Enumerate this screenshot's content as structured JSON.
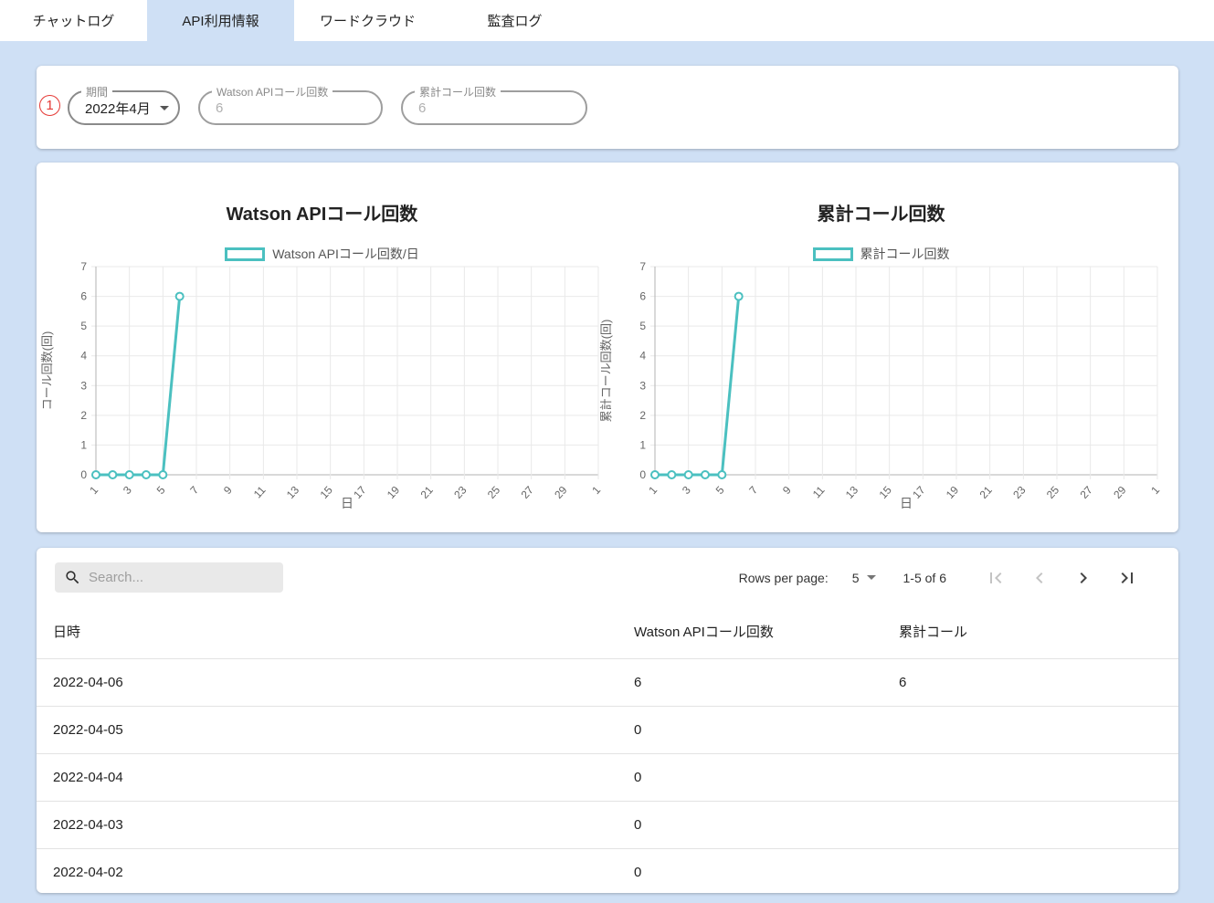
{
  "colors": {
    "accent_teal": "#4BC0C0",
    "page_bg": "#cfe0f5",
    "annotation_red": "#e53935"
  },
  "tabs": [
    {
      "label": "チャットログ",
      "active": false
    },
    {
      "label": "API利用情報",
      "active": true
    },
    {
      "label": "ワードクラウド",
      "active": false
    },
    {
      "label": "監査ログ",
      "active": false
    }
  ],
  "annotation": {
    "label": "1"
  },
  "filters": {
    "period": {
      "label": "期間",
      "value": "2022年4月"
    },
    "watson_calls": {
      "label": "Watson APIコール回数",
      "value": "6"
    },
    "total_calls": {
      "label": "累計コール回数",
      "value": "6"
    }
  },
  "chart_data": [
    {
      "type": "line",
      "title": "Watson APIコール回数",
      "legend": "Watson APIコール回数/日",
      "ylabel": "コール回数(回)",
      "xlabel": "日",
      "color": "#4BC0C0",
      "ylim": [
        0,
        7
      ],
      "yticks": [
        0,
        1,
        2,
        3,
        4,
        5,
        6,
        7
      ],
      "xlim": [
        1,
        31
      ],
      "xtick_days": [
        1,
        3,
        5,
        7,
        9,
        11,
        13,
        15,
        17,
        19,
        21,
        23,
        25,
        27,
        29,
        31
      ],
      "xtick_labels": [
        "1",
        "3",
        "5",
        "7",
        "9",
        "11",
        "13",
        "15",
        "17",
        "19",
        "21",
        "23",
        "25",
        "27",
        "29",
        "1"
      ],
      "x": [
        1,
        2,
        3,
        4,
        5,
        6
      ],
      "y": [
        0,
        0,
        0,
        0,
        0,
        6
      ],
      "grid": true,
      "legend_position": "top"
    },
    {
      "type": "line",
      "title": "累計コール回数",
      "legend": "累計コール回数",
      "ylabel": "累計コール回数(回)",
      "xlabel": "日",
      "color": "#4BC0C0",
      "ylim": [
        0,
        7
      ],
      "yticks": [
        0,
        1,
        2,
        3,
        4,
        5,
        6,
        7
      ],
      "xlim": [
        1,
        31
      ],
      "xtick_days": [
        1,
        3,
        5,
        7,
        9,
        11,
        13,
        15,
        17,
        19,
        21,
        23,
        25,
        27,
        29,
        31
      ],
      "xtick_labels": [
        "1",
        "3",
        "5",
        "7",
        "9",
        "11",
        "13",
        "15",
        "17",
        "19",
        "21",
        "23",
        "25",
        "27",
        "29",
        "1"
      ],
      "x": [
        1,
        2,
        3,
        4,
        5,
        6
      ],
      "y": [
        0,
        0,
        0,
        0,
        0,
        6
      ],
      "grid": true,
      "legend_position": "top"
    }
  ],
  "table": {
    "search_placeholder": "Search...",
    "pagination": {
      "rows_per_page_label": "Rows per page:",
      "rows_per_page": "5",
      "range": "1-5 of 6"
    },
    "columns": [
      "日時",
      "Watson APIコール回数",
      "累計コール"
    ],
    "rows": [
      [
        "2022-04-06",
        "6",
        "6"
      ],
      [
        "2022-04-05",
        "0",
        ""
      ],
      [
        "2022-04-04",
        "0",
        ""
      ],
      [
        "2022-04-03",
        "0",
        ""
      ],
      [
        "2022-04-02",
        "0",
        ""
      ]
    ]
  }
}
